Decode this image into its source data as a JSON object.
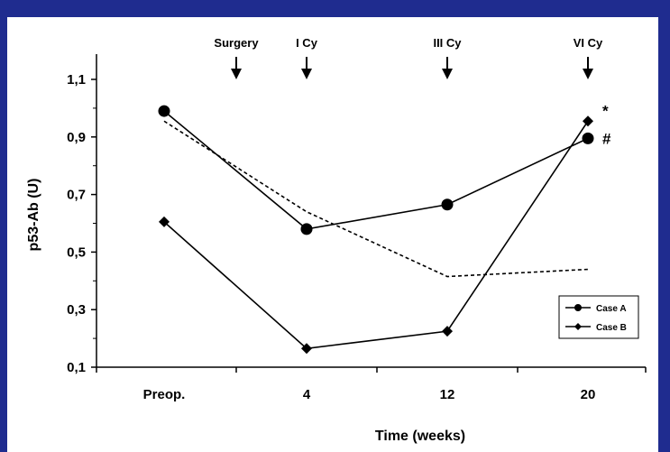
{
  "chart_data": {
    "type": "line",
    "title": "",
    "xlabel": "Time (weeks)",
    "ylabel": "p53-Ab (U)",
    "x_categories": [
      "Preop.",
      "4",
      "12",
      "20"
    ],
    "x_numeric": [
      -3.5,
      4,
      12,
      20
    ],
    "ylim": [
      0.1,
      1.2
    ],
    "yticks": [
      0.1,
      0.3,
      0.5,
      0.7,
      0.9,
      1.1
    ],
    "ytick_labels": [
      "0,1",
      "0,3",
      "0,5",
      "0,7",
      "0,9",
      "1,1"
    ],
    "series": [
      {
        "name": "Case A",
        "marker": "circle",
        "line": "solid",
        "x": [
          -3.5,
          4,
          12,
          20
        ],
        "y": [
          0.99,
          0.58,
          0.665,
          0.895
        ],
        "end_mark": "#"
      },
      {
        "name": "Case B",
        "marker": "diamond",
        "line": "solid",
        "x": [
          -3.5,
          4,
          12,
          20
        ],
        "y": [
          0.605,
          0.165,
          0.225,
          0.955
        ],
        "end_mark": "*"
      },
      {
        "name": "",
        "marker": "none",
        "line": "dotted",
        "x": [
          -3.5,
          4,
          12,
          20
        ],
        "y": [
          0.955,
          0.64,
          0.415,
          0.44
        ]
      }
    ],
    "events": [
      {
        "label": "Surgery",
        "x": 0
      },
      {
        "label": "I Cy",
        "x": 4
      },
      {
        "label": "III Cy",
        "x": 12
      },
      {
        "label": "VI Cy",
        "x": 20
      }
    ],
    "legend": {
      "placement": "bottom-right"
    },
    "grid": false
  }
}
